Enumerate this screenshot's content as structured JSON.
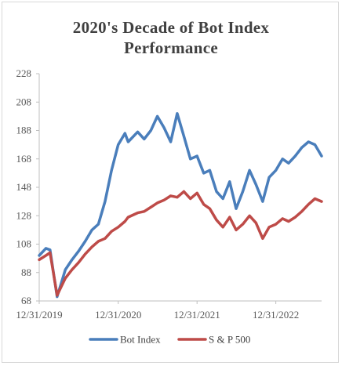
{
  "chart_data": {
    "type": "line",
    "title_line1": "2020's Decade of Bot Index",
    "title_line2": "Performance",
    "xlabel": "",
    "ylabel": "",
    "ylim": [
      68,
      228
    ],
    "y_ticks": [
      "228",
      "208",
      "188",
      "168",
      "148",
      "128",
      "108",
      "88",
      "68"
    ],
    "x_range": [
      "2019-12-31",
      "2023-07-31"
    ],
    "x_ticks": [
      "12/31/2019",
      "12/31/2020",
      "12/31/2021",
      "12/31/2022"
    ],
    "grid": false,
    "legend_position": "bottom",
    "x": [
      "2019-12-31",
      "2020-01-31",
      "2020-02-19",
      "2020-03-23",
      "2020-04-30",
      "2020-05-31",
      "2020-06-30",
      "2020-07-31",
      "2020-08-31",
      "2020-09-30",
      "2020-10-31",
      "2020-11-30",
      "2020-12-31",
      "2021-01-31",
      "2021-02-15",
      "2021-03-31",
      "2021-04-30",
      "2021-05-31",
      "2021-06-30",
      "2021-07-31",
      "2021-08-31",
      "2021-09-30",
      "2021-10-31",
      "2021-11-30",
      "2021-12-31",
      "2022-01-31",
      "2022-02-28",
      "2022-03-31",
      "2022-04-30",
      "2022-05-31",
      "2022-06-30",
      "2022-07-31",
      "2022-08-31",
      "2022-09-30",
      "2022-10-31",
      "2022-11-30",
      "2022-12-31",
      "2023-01-31",
      "2023-02-28",
      "2023-03-31",
      "2023-04-30",
      "2023-05-31",
      "2023-06-30",
      "2023-07-31"
    ],
    "series": [
      {
        "name": "Bot Index",
        "color": "#4a7ebb",
        "values": [
          100,
          105,
          104,
          71,
          90,
          97,
          103,
          110,
          118,
          122,
          138,
          160,
          178,
          186,
          180,
          187,
          182,
          188,
          198,
          190,
          180,
          200,
          184,
          168,
          170,
          158,
          160,
          145,
          140,
          152,
          133,
          145,
          160,
          150,
          138,
          155,
          160,
          168,
          165,
          170,
          176,
          180,
          178,
          170
        ]
      },
      {
        "name": "S & P 500",
        "color": "#be4b48",
        "values": [
          97,
          100,
          102,
          72,
          84,
          90,
          95,
          101,
          106,
          110,
          112,
          117,
          120,
          124,
          127,
          130,
          131,
          134,
          137,
          139,
          142,
          141,
          145,
          140,
          144,
          136,
          133,
          125,
          120,
          127,
          118,
          122,
          128,
          123,
          112,
          120,
          122,
          126,
          124,
          127,
          131,
          136,
          140,
          138
        ]
      }
    ]
  }
}
